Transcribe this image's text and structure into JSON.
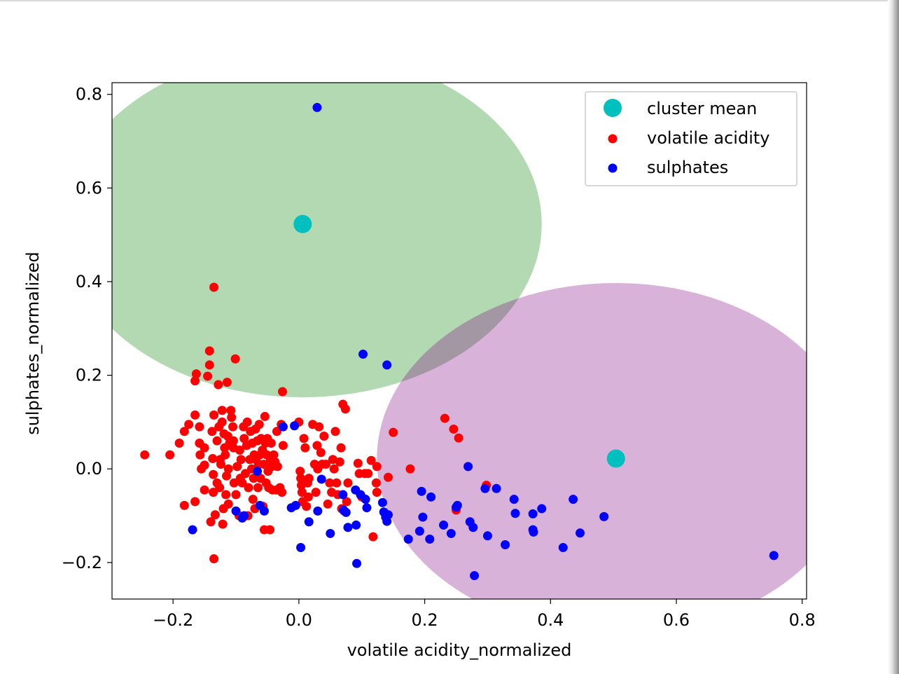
{
  "chart_data": {
    "type": "scatter",
    "xlabel": "volatile acidity_normalized",
    "ylabel": "sulphates_normalized",
    "xlim": [
      -0.297,
      0.807
    ],
    "ylim": [
      -0.278,
      0.825
    ],
    "xticks": [
      -0.2,
      0.0,
      0.2,
      0.4,
      0.6,
      0.8
    ],
    "yticks": [
      -0.2,
      0.0,
      0.2,
      0.4,
      0.6,
      0.8
    ],
    "xtick_labels": [
      "−0.2",
      "0.0",
      "0.2",
      "0.4",
      "0.6",
      "0.8"
    ],
    "ytick_labels": [
      "−0.2",
      "0.0",
      "0.2",
      "0.4",
      "0.6",
      "0.8"
    ],
    "grid": false,
    "legend_position": "top-right",
    "legend": [
      {
        "label": "cluster mean",
        "color": "#00bfbf"
      },
      {
        "label": "volatile acidity",
        "color": "#ff0000"
      },
      {
        "label": "sulphates",
        "color": "#0000ff"
      }
    ],
    "clusters": [
      {
        "center": [
          0.006,
          0.523
        ],
        "width": 0.76,
        "height": 0.74,
        "color": "#008000",
        "alpha": 0.3
      },
      {
        "center": [
          0.504,
          0.022
        ],
        "width": 0.76,
        "height": 0.75,
        "color": "#800080",
        "alpha": 0.3
      }
    ],
    "series": [
      {
        "name": "volatile acidity",
        "color": "#ff0000",
        "points": [
          [
            -0.245,
            0.03
          ],
          [
            -0.205,
            0.03
          ],
          [
            -0.19,
            0.055
          ],
          [
            -0.182,
            0.08
          ],
          [
            -0.175,
            0.095
          ],
          [
            -0.182,
            -0.078
          ],
          [
            -0.165,
            0.115
          ],
          [
            -0.165,
            0.188
          ],
          [
            -0.163,
            0.203
          ],
          [
            -0.165,
            -0.07
          ],
          [
            -0.158,
            0.09
          ],
          [
            -0.158,
            0.055
          ],
          [
            -0.157,
            0.03
          ],
          [
            -0.155,
            0.0
          ],
          [
            -0.15,
            0.045
          ],
          [
            -0.15,
            0.008
          ],
          [
            -0.15,
            -0.045
          ],
          [
            -0.145,
            0.198
          ],
          [
            -0.142,
            0.222
          ],
          [
            -0.142,
            0.252
          ],
          [
            -0.14,
            -0.113
          ],
          [
            -0.138,
            0.08
          ],
          [
            -0.137,
            0.022
          ],
          [
            -0.136,
            -0.012
          ],
          [
            -0.136,
            -0.05
          ],
          [
            -0.135,
            0.115
          ],
          [
            -0.135,
            0.388
          ],
          [
            -0.135,
            -0.192
          ],
          [
            -0.133,
            -0.098
          ],
          [
            -0.13,
            -0.03
          ],
          [
            -0.13,
            0.06
          ],
          [
            -0.128,
            0.18
          ],
          [
            -0.127,
            0.09
          ],
          [
            -0.126,
            -0.04
          ],
          [
            -0.125,
            0.02
          ],
          [
            -0.124,
            0.01
          ],
          [
            -0.122,
            0.125
          ],
          [
            -0.122,
            0.1
          ],
          [
            -0.121,
            -0.118
          ],
          [
            -0.12,
            -0.085
          ],
          [
            -0.119,
            0.075
          ],
          [
            -0.118,
            0.045
          ],
          [
            -0.117,
            0.03
          ],
          [
            -0.116,
            -0.055
          ],
          [
            -0.115,
            -0.015
          ],
          [
            -0.114,
            0.185
          ],
          [
            -0.113,
            0.07
          ],
          [
            -0.112,
            -0.075
          ],
          [
            -0.112,
            0.0
          ],
          [
            -0.11,
            0.055
          ],
          [
            -0.108,
            0.125
          ],
          [
            -0.107,
            0.11
          ],
          [
            -0.105,
            0.09
          ],
          [
            -0.104,
            0.06
          ],
          [
            -0.104,
            0.045
          ],
          [
            -0.103,
            -0.03
          ],
          [
            -0.101,
            0.235
          ],
          [
            -0.1,
            -0.055
          ],
          [
            -0.098,
            0.005
          ],
          [
            -0.095,
            -0.1
          ],
          [
            -0.094,
            0.04
          ],
          [
            -0.093,
            -0.02
          ],
          [
            -0.092,
            0.02
          ],
          [
            -0.09,
            -0.03
          ],
          [
            -0.088,
            0.09
          ],
          [
            -0.087,
            0.065
          ],
          [
            -0.085,
            -0.01
          ],
          [
            -0.083,
            0.05
          ],
          [
            -0.082,
            0.1
          ],
          [
            -0.081,
            -0.1
          ],
          [
            -0.08,
            -0.04
          ],
          [
            -0.078,
            0.02
          ],
          [
            -0.077,
            0.08
          ],
          [
            -0.075,
            0.0
          ],
          [
            -0.074,
            0.055
          ],
          [
            -0.073,
            -0.065
          ],
          [
            -0.072,
            -0.02
          ],
          [
            -0.071,
            0.03
          ],
          [
            -0.07,
            -0.085
          ],
          [
            -0.069,
            0.085
          ],
          [
            -0.068,
            0.02
          ],
          [
            -0.066,
            0.06
          ],
          [
            -0.065,
            -0.04
          ],
          [
            -0.064,
            0.01
          ],
          [
            -0.063,
            0.095
          ],
          [
            -0.062,
            0.03
          ],
          [
            -0.061,
            -0.02
          ],
          [
            -0.06,
            0.065
          ],
          [
            -0.058,
            0.04
          ],
          [
            -0.057,
            -0.08
          ],
          [
            -0.056,
            0.01
          ],
          [
            -0.055,
            -0.13
          ],
          [
            -0.054,
            0.112
          ],
          [
            -0.053,
            0.055
          ],
          [
            -0.052,
            -0.03
          ],
          [
            -0.051,
            0.03
          ],
          [
            -0.05,
            0.065
          ],
          [
            -0.049,
            -0.005
          ],
          [
            -0.048,
            -0.04
          ],
          [
            -0.046,
            -0.13
          ],
          [
            -0.045,
            0.02
          ],
          [
            -0.044,
            0.055
          ],
          [
            -0.043,
            0.005
          ],
          [
            -0.042,
            -0.045
          ],
          [
            -0.04,
            0.03
          ],
          [
            -0.038,
            0.015
          ],
          [
            -0.036,
            -0.045
          ],
          [
            -0.035,
            0.08
          ],
          [
            -0.034,
            0.005
          ],
          [
            -0.03,
            -0.04
          ],
          [
            -0.028,
            0.095
          ],
          [
            -0.027,
            -0.05
          ],
          [
            -0.026,
            0.165
          ],
          [
            -0.025,
            0.05
          ],
          [
            0.0,
            0.1
          ],
          [
            0.002,
            -0.005
          ],
          [
            0.003,
            -0.02
          ],
          [
            0.004,
            -0.035
          ],
          [
            0.005,
            -0.05
          ],
          [
            0.006,
            -0.07
          ],
          [
            0.008,
            0.065
          ],
          [
            0.01,
            0.045
          ],
          [
            0.012,
            -0.08
          ],
          [
            0.014,
            -0.03
          ],
          [
            0.015,
            -0.06
          ],
          [
            0.016,
            -0.02
          ],
          [
            0.022,
            0.095
          ],
          [
            0.025,
            0.01
          ],
          [
            0.027,
            -0.05
          ],
          [
            0.029,
            0.05
          ],
          [
            0.03,
            0.0
          ],
          [
            0.032,
            0.09
          ],
          [
            0.035,
            0.035
          ],
          [
            0.037,
            0.01
          ],
          [
            0.04,
            0.07
          ],
          [
            0.043,
            0.01
          ],
          [
            0.046,
            -0.075
          ],
          [
            0.049,
            -0.03
          ],
          [
            0.052,
            -0.05
          ],
          [
            0.054,
            0.02
          ],
          [
            0.056,
            0.0
          ],
          [
            0.058,
            0.08
          ],
          [
            0.06,
            -0.03
          ],
          [
            0.062,
            -0.055
          ],
          [
            0.065,
            0.015
          ],
          [
            0.067,
            0.045
          ],
          [
            0.068,
            -0.085
          ],
          [
            0.07,
            0.138
          ],
          [
            0.072,
            -0.09
          ],
          [
            0.074,
            0.128
          ],
          [
            0.076,
            -0.07
          ],
          [
            0.078,
            -0.03
          ],
          [
            0.094,
            0.012
          ],
          [
            0.096,
            -0.01
          ],
          [
            0.1,
            -0.06
          ],
          [
            0.105,
            -0.01
          ],
          [
            0.11,
            -0.01
          ],
          [
            0.115,
            0.018
          ],
          [
            0.118,
            -0.145
          ],
          [
            0.123,
            -0.03
          ],
          [
            0.124,
            -0.05
          ],
          [
            0.124,
            0.005
          ],
          [
            0.142,
            -0.018
          ],
          [
            0.15,
            0.078
          ],
          [
            0.177,
            0.0
          ],
          [
            0.232,
            0.108
          ],
          [
            0.246,
            0.085
          ],
          [
            0.254,
            0.066
          ],
          [
            0.25,
            -0.088
          ],
          [
            0.298,
            -0.035
          ]
        ]
      },
      {
        "name": "sulphates",
        "color": "#0000ff",
        "points": [
          [
            0.029,
            0.772
          ],
          [
            0.102,
            0.245
          ],
          [
            0.14,
            0.222
          ],
          [
            -0.169,
            -0.13
          ],
          [
            -0.1,
            -0.09
          ],
          [
            -0.09,
            -0.105
          ],
          [
            -0.087,
            -0.1
          ],
          [
            -0.066,
            -0.005
          ],
          [
            -0.062,
            -0.078
          ],
          [
            -0.055,
            -0.09
          ],
          [
            -0.025,
            0.09
          ],
          [
            -0.012,
            -0.083
          ],
          [
            -0.007,
            0.092
          ],
          [
            -0.005,
            -0.078
          ],
          [
            0.003,
            -0.168
          ],
          [
            0.016,
            -0.113
          ],
          [
            0.03,
            -0.09
          ],
          [
            0.036,
            -0.022
          ],
          [
            0.05,
            -0.138
          ],
          [
            0.07,
            -0.055
          ],
          [
            0.071,
            -0.088
          ],
          [
            0.075,
            -0.093
          ],
          [
            0.078,
            -0.125
          ],
          [
            0.09,
            -0.045
          ],
          [
            0.091,
            -0.12
          ],
          [
            0.092,
            -0.202
          ],
          [
            0.098,
            -0.055
          ],
          [
            0.106,
            -0.065
          ],
          [
            0.108,
            -0.083
          ],
          [
            0.133,
            -0.072
          ],
          [
            0.135,
            -0.092
          ],
          [
            0.138,
            -0.103
          ],
          [
            0.14,
            -0.112
          ],
          [
            0.142,
            -0.098
          ],
          [
            0.174,
            -0.15
          ],
          [
            0.192,
            -0.133
          ],
          [
            0.195,
            -0.048
          ],
          [
            0.197,
            -0.103
          ],
          [
            0.208,
            -0.15
          ],
          [
            0.21,
            -0.06
          ],
          [
            0.23,
            -0.12
          ],
          [
            0.242,
            -0.138
          ],
          [
            0.25,
            -0.082
          ],
          [
            0.252,
            -0.078
          ],
          [
            0.269,
            0.005
          ],
          [
            0.272,
            -0.113
          ],
          [
            0.277,
            -0.125
          ],
          [
            0.279,
            -0.228
          ],
          [
            0.296,
            -0.042
          ],
          [
            0.3,
            -0.143
          ],
          [
            0.314,
            -0.042
          ],
          [
            0.328,
            -0.162
          ],
          [
            0.342,
            -0.065
          ],
          [
            0.344,
            -0.095
          ],
          [
            0.372,
            -0.096
          ],
          [
            0.372,
            -0.13
          ],
          [
            0.373,
            -0.135
          ],
          [
            0.386,
            -0.085
          ],
          [
            0.42,
            -0.168
          ],
          [
            0.436,
            -0.065
          ],
          [
            0.447,
            -0.137
          ],
          [
            0.485,
            -0.102
          ],
          [
            0.755,
            -0.185
          ]
        ]
      },
      {
        "name": "cluster mean",
        "color": "#00bfbf",
        "points": [
          [
            0.006,
            0.523
          ],
          [
            0.504,
            0.022
          ]
        ]
      }
    ]
  }
}
